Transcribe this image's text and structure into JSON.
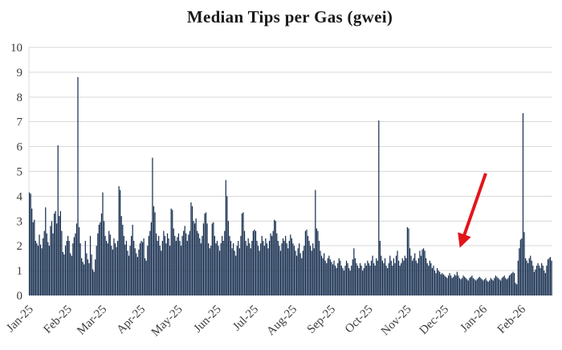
{
  "page": {
    "background": "#ffffff"
  },
  "chart_data": {
    "type": "bar",
    "title": "Median Tips per Gas (gwei)",
    "xlabel": "",
    "ylabel": "",
    "ylim": [
      0,
      10
    ],
    "y_ticks": [
      0,
      1,
      2,
      3,
      4,
      5,
      6,
      7,
      8,
      9,
      10
    ],
    "grid": "horizontal",
    "legend": "none",
    "x_unit": "day",
    "x_tick_labels": [
      "Jan-25",
      "Feb-25",
      "Mar-25",
      "Apr-25",
      "May-25",
      "Jun-25",
      "Jul-25",
      "Aug-25",
      "Sep-25",
      "Oct-25",
      "Nov-25",
      "Dec-25",
      "Jan-26",
      "Feb-26"
    ],
    "x_tick_day_offsets": [
      0,
      31,
      59,
      90,
      120,
      151,
      181,
      212,
      243,
      273,
      304,
      334,
      365,
      396
    ],
    "notable_points": [
      {
        "label": "Jan-25 spike",
        "value": 6.05
      },
      {
        "label": "Feb-25 spike",
        "value": 8.8
      },
      {
        "label": "Apr-25 spike",
        "value": 5.55
      },
      {
        "label": "Oct-25 spike",
        "value": 7.05
      },
      {
        "label": "Feb-26 spike",
        "value": 7.35
      }
    ],
    "series": [
      {
        "name": "Median tips per gas",
        "daily_values": [
          4.15,
          4.1,
          3.5,
          2.95,
          3.05,
          2.2,
          2.1,
          2.0,
          2.45,
          2.05,
          1.9,
          2.3,
          2.6,
          3.55,
          2.5,
          2.15,
          2.0,
          2.8,
          3.0,
          2.5,
          3.3,
          3.4,
          2.9,
          6.05,
          3.2,
          3.4,
          2.6,
          1.75,
          1.65,
          2.0,
          2.2,
          2.4,
          2.2,
          1.7,
          1.6,
          2.1,
          2.35,
          2.5,
          2.9,
          8.8,
          2.75,
          2.1,
          1.5,
          1.35,
          1.25,
          2.2,
          1.7,
          1.45,
          1.3,
          2.4,
          1.65,
          1.05,
          0.95,
          1.45,
          2.0,
          2.5,
          2.85,
          2.95,
          3.3,
          4.15,
          3.0,
          2.4,
          2.2,
          2.1,
          2.6,
          2.45,
          2.0,
          1.85,
          2.3,
          2.1,
          1.95,
          2.2,
          4.4,
          4.25,
          3.2,
          2.85,
          2.4,
          2.05,
          2.2,
          1.8,
          1.6,
          2.0,
          2.4,
          2.85,
          2.2,
          1.9,
          1.7,
          1.55,
          1.85,
          2.1,
          2.2,
          2.15,
          2.3,
          1.5,
          1.4,
          2.0,
          2.4,
          2.6,
          2.95,
          5.55,
          3.6,
          3.35,
          2.5,
          2.2,
          2.4,
          2.0,
          1.8,
          2.2,
          2.6,
          2.4,
          2.1,
          2.5,
          2.3,
          2.0,
          3.5,
          3.45,
          2.7,
          2.4,
          2.2,
          2.35,
          2.5,
          2.2,
          2.0,
          2.4,
          2.6,
          2.8,
          2.5,
          2.2,
          2.45,
          2.6,
          3.75,
          3.6,
          3.0,
          2.9,
          3.1,
          2.6,
          2.5,
          2.3,
          2.1,
          2.4,
          2.9,
          3.3,
          3.35,
          2.9,
          2.1,
          1.9,
          2.0,
          2.9,
          2.95,
          2.4,
          2.1,
          2.2,
          2.0,
          1.8,
          2.1,
          2.4,
          2.2,
          2.6,
          4.65,
          4.0,
          3.0,
          2.4,
          2.2,
          1.9,
          2.1,
          1.8,
          1.6,
          2.0,
          2.2,
          1.9,
          2.4,
          3.3,
          3.35,
          2.6,
          2.2,
          2.0,
          2.3,
          2.1,
          1.9,
          2.2,
          2.6,
          2.65,
          2.6,
          2.2,
          2.0,
          1.8,
          2.1,
          2.4,
          2.2,
          2.0,
          2.3,
          2.1,
          1.9,
          2.2,
          2.5,
          2.4,
          2.6,
          3.05,
          3.0,
          2.5,
          2.2,
          2.0,
          1.8,
          2.1,
          2.3,
          2.2,
          2.4,
          2.1,
          1.9,
          2.2,
          2.45,
          2.3,
          2.1,
          2.0,
          1.8,
          1.6,
          1.9,
          2.1,
          1.7,
          1.5,
          1.8,
          2.0,
          2.6,
          2.65,
          2.4,
          2.2,
          2.0,
          1.8,
          2.1,
          1.9,
          4.25,
          2.7,
          2.6,
          2.2,
          1.8,
          1.6,
          1.5,
          1.7,
          1.4,
          1.3,
          1.5,
          1.6,
          1.45,
          1.35,
          1.25,
          1.4,
          1.2,
          1.1,
          1.3,
          1.5,
          1.4,
          1.2,
          1.1,
          1.0,
          1.2,
          1.4,
          1.3,
          1.1,
          1.0,
          1.2,
          1.45,
          1.9,
          1.5,
          1.3,
          1.2,
          1.1,
          1.3,
          1.2,
          1.0,
          1.1,
          1.3,
          1.2,
          1.4,
          1.3,
          1.2,
          1.4,
          1.6,
          1.3,
          1.2,
          1.5,
          1.4,
          7.05,
          2.2,
          1.6,
          1.4,
          1.3,
          1.5,
          1.2,
          1.1,
          1.3,
          1.6,
          1.4,
          1.2,
          1.5,
          1.3,
          1.6,
          1.8,
          1.4,
          1.2,
          1.3,
          1.5,
          1.4,
          1.6,
          1.5,
          2.75,
          2.7,
          1.9,
          1.6,
          1.4,
          1.5,
          1.7,
          1.4,
          1.3,
          1.5,
          1.8,
          1.6,
          1.85,
          1.9,
          1.8,
          1.5,
          1.3,
          1.2,
          1.4,
          1.3,
          1.1,
          1.2,
          1.0,
          0.9,
          1.1,
          1.0,
          0.95,
          0.85,
          0.9,
          0.85,
          0.8,
          0.75,
          0.7,
          0.8,
          0.9,
          0.8,
          0.7,
          0.75,
          0.85,
          0.8,
          0.95,
          0.8,
          0.7,
          0.65,
          0.7,
          0.8,
          0.75,
          0.7,
          0.65,
          0.6,
          0.7,
          0.75,
          0.8,
          0.7,
          0.65,
          0.6,
          0.65,
          0.7,
          0.75,
          0.7,
          0.65,
          0.6,
          0.65,
          0.7,
          0.6,
          0.55,
          0.6,
          0.7,
          0.65,
          0.6,
          0.7,
          0.8,
          0.75,
          0.7,
          0.65,
          0.6,
          0.7,
          0.75,
          0.8,
          0.7,
          0.65,
          0.7,
          0.8,
          0.85,
          0.9,
          0.95,
          0.9,
          0.5,
          0.45,
          1.4,
          1.9,
          2.25,
          2.3,
          7.35,
          2.55,
          1.5,
          1.4,
          1.3,
          1.5,
          1.6,
          1.4,
          1.2,
          0.95,
          1.05,
          1.2,
          1.3,
          1.2,
          1.1,
          1.3,
          1.2,
          1.0,
          0.9,
          1.2,
          1.45,
          1.5,
          1.55,
          1.4
        ]
      }
    ],
    "annotation": {
      "type": "arrow",
      "points_to": "low median tips region in Dec-25",
      "color": "#e2151b",
      "from": [
        605,
        216
      ],
      "to": [
        574,
        305
      ]
    },
    "colors": {
      "bar": "#1a3152",
      "gridline": "#d9d9d9",
      "title": "#1a1a1a",
      "axis_labels": "#3d3d3d"
    }
  }
}
